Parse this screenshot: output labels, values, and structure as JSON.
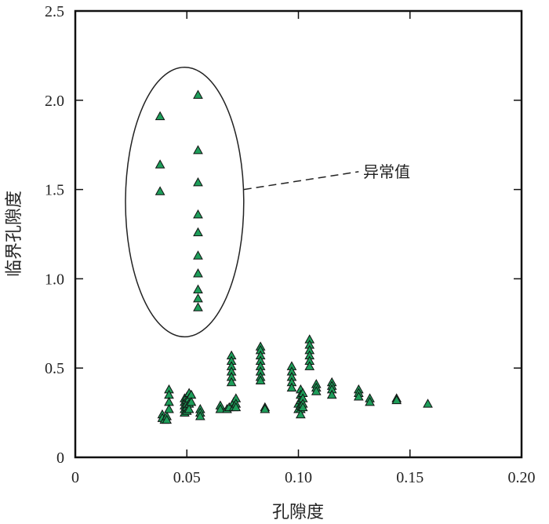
{
  "chart_data": {
    "type": "scatter",
    "xlabel": "孔隙度",
    "ylabel": "临界孔隙度",
    "xlim": [
      0,
      0.2
    ],
    "ylim": [
      0,
      2.5
    ],
    "x_ticks": [
      {
        "value": 0,
        "label": "0"
      },
      {
        "value": 0.05,
        "label": "0.05"
      },
      {
        "value": 0.1,
        "label": "0.10"
      },
      {
        "value": 0.15,
        "label": "0.15"
      },
      {
        "value": 0.2,
        "label": "0.20"
      }
    ],
    "y_ticks": [
      {
        "value": 0,
        "label": "0"
      },
      {
        "value": 0.5,
        "label": "0.5"
      },
      {
        "value": 1.0,
        "label": "1.0"
      },
      {
        "value": 1.5,
        "label": "1.5"
      },
      {
        "value": 2.0,
        "label": "2.0"
      },
      {
        "value": 2.5,
        "label": "2.5"
      }
    ],
    "grid": false,
    "marker": "triangle",
    "marker_color": "#1e9e5a",
    "annotation": {
      "label": "异常值",
      "ellipse_center": [
        0.049,
        1.43
      ],
      "ellipse_radius": [
        0.0265,
        0.755
      ]
    },
    "points": [
      [
        0.038,
        1.91
      ],
      [
        0.038,
        1.64
      ],
      [
        0.038,
        1.49
      ],
      [
        0.055,
        2.03
      ],
      [
        0.055,
        1.72
      ],
      [
        0.055,
        1.54
      ],
      [
        0.055,
        1.36
      ],
      [
        0.055,
        1.26
      ],
      [
        0.055,
        1.13
      ],
      [
        0.055,
        1.03
      ],
      [
        0.055,
        0.94
      ],
      [
        0.055,
        0.89
      ],
      [
        0.055,
        0.84
      ],
      [
        0.039,
        0.24
      ],
      [
        0.039,
        0.22
      ],
      [
        0.04,
        0.21
      ],
      [
        0.041,
        0.23
      ],
      [
        0.041,
        0.21
      ],
      [
        0.042,
        0.38
      ],
      [
        0.042,
        0.35
      ],
      [
        0.042,
        0.31
      ],
      [
        0.042,
        0.27
      ],
      [
        0.049,
        0.33
      ],
      [
        0.049,
        0.31
      ],
      [
        0.049,
        0.29
      ],
      [
        0.049,
        0.27
      ],
      [
        0.049,
        0.25
      ],
      [
        0.05,
        0.34
      ],
      [
        0.05,
        0.32
      ],
      [
        0.05,
        0.3
      ],
      [
        0.05,
        0.28
      ],
      [
        0.05,
        0.26
      ],
      [
        0.051,
        0.36
      ],
      [
        0.051,
        0.33
      ],
      [
        0.051,
        0.3
      ],
      [
        0.051,
        0.27
      ],
      [
        0.052,
        0.35
      ],
      [
        0.052,
        0.31
      ],
      [
        0.056,
        0.27
      ],
      [
        0.056,
        0.25
      ],
      [
        0.056,
        0.23
      ],
      [
        0.065,
        0.29
      ],
      [
        0.065,
        0.27
      ],
      [
        0.068,
        0.27
      ],
      [
        0.069,
        0.28
      ],
      [
        0.07,
        0.57
      ],
      [
        0.07,
        0.54
      ],
      [
        0.07,
        0.51
      ],
      [
        0.07,
        0.48
      ],
      [
        0.07,
        0.45
      ],
      [
        0.07,
        0.42
      ],
      [
        0.071,
        0.31
      ],
      [
        0.071,
        0.28
      ],
      [
        0.072,
        0.33
      ],
      [
        0.072,
        0.3
      ],
      [
        0.072,
        0.28
      ],
      [
        0.083,
        0.62
      ],
      [
        0.083,
        0.6
      ],
      [
        0.083,
        0.57
      ],
      [
        0.083,
        0.54
      ],
      [
        0.083,
        0.51
      ],
      [
        0.083,
        0.48
      ],
      [
        0.083,
        0.45
      ],
      [
        0.083,
        0.43
      ],
      [
        0.085,
        0.28
      ],
      [
        0.085,
        0.27
      ],
      [
        0.097,
        0.51
      ],
      [
        0.097,
        0.48
      ],
      [
        0.097,
        0.45
      ],
      [
        0.097,
        0.42
      ],
      [
        0.097,
        0.39
      ],
      [
        0.1,
        0.3
      ],
      [
        0.1,
        0.27
      ],
      [
        0.101,
        0.38
      ],
      [
        0.101,
        0.35
      ],
      [
        0.101,
        0.32
      ],
      [
        0.101,
        0.29
      ],
      [
        0.101,
        0.27
      ],
      [
        0.101,
        0.24
      ],
      [
        0.102,
        0.36
      ],
      [
        0.102,
        0.33
      ],
      [
        0.102,
        0.3
      ],
      [
        0.102,
        0.28
      ],
      [
        0.105,
        0.66
      ],
      [
        0.105,
        0.63
      ],
      [
        0.105,
        0.6
      ],
      [
        0.105,
        0.57
      ],
      [
        0.105,
        0.54
      ],
      [
        0.105,
        0.51
      ],
      [
        0.108,
        0.41
      ],
      [
        0.108,
        0.39
      ],
      [
        0.108,
        0.37
      ],
      [
        0.115,
        0.42
      ],
      [
        0.115,
        0.4
      ],
      [
        0.115,
        0.38
      ],
      [
        0.115,
        0.35
      ],
      [
        0.127,
        0.38
      ],
      [
        0.127,
        0.36
      ],
      [
        0.127,
        0.34
      ],
      [
        0.132,
        0.33
      ],
      [
        0.132,
        0.31
      ],
      [
        0.144,
        0.33
      ],
      [
        0.144,
        0.32
      ],
      [
        0.158,
        0.3
      ]
    ]
  }
}
